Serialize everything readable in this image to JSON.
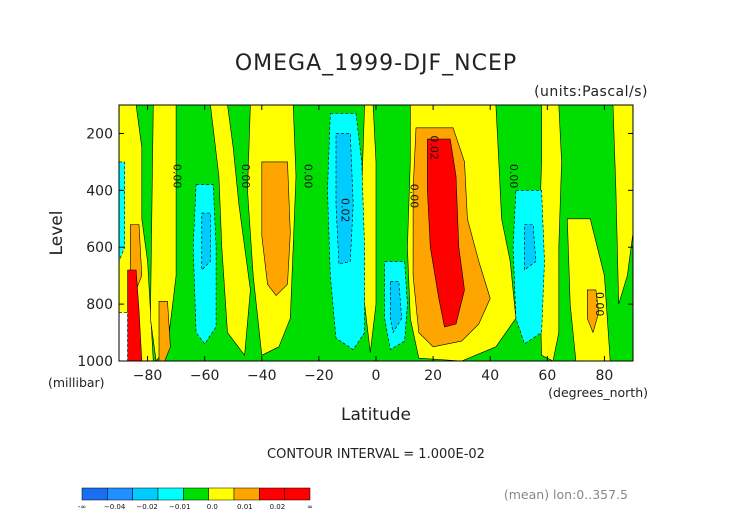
{
  "chart_data": {
    "type": "heatmap",
    "title": "OMEGA_1999-DJF_NCEP",
    "units": "(units:Pascal/s)",
    "xlabel": "Latitude",
    "xunits": "(degrees_north)",
    "ylabel": "Level",
    "yunits": "(millibar)",
    "xlim": [
      -90,
      90
    ],
    "ylim": [
      1000,
      100
    ],
    "xticks": [
      -80,
      -60,
      -40,
      -20,
      0,
      20,
      40,
      60,
      80
    ],
    "yticks": [
      200,
      400,
      600,
      800,
      1000
    ],
    "contour_interval_text": "CONTOUR INTERVAL = 1.000E-02",
    "mean_text": "(mean) lon:0..357.5",
    "colorbar": {
      "labels": [
        "-∞",
        "−0.04",
        "−0.02",
        "−0.01",
        "0.0",
        "0.01",
        "0.02",
        "∞"
      ],
      "colors": [
        "#1a6ef0",
        "#1e90ff",
        "#00ccff",
        "#00ffff",
        "#00dd00",
        "#ffff00",
        "#ffa500",
        "#ff0000",
        "#ff0000"
      ]
    },
    "contour_labels": [
      {
        "text": "0.00",
        "x": -71,
        "y": 350
      },
      {
        "text": "0.00",
        "x": -47,
        "y": 350
      },
      {
        "text": "0.00",
        "x": -25,
        "y": 350
      },
      {
        "text": "0.02",
        "x": -12,
        "y": 470
      },
      {
        "text": "0.00",
        "x": 12,
        "y": 420
      },
      {
        "text": "0.02",
        "x": 19,
        "y": 250
      },
      {
        "text": "0.00",
        "x": 47,
        "y": 350
      },
      {
        "text": "0.00",
        "x": 77,
        "y": 800
      }
    ],
    "regions": [
      {
        "level": 0.005,
        "color": "#ffff00",
        "polygon": [
          [
            -90,
            100
          ],
          [
            -84,
            100
          ],
          [
            -82,
            250
          ],
          [
            -82,
            500
          ],
          [
            -80,
            650
          ],
          [
            -78,
            1000
          ],
          [
            -90,
            1000
          ]
        ]
      },
      {
        "level": 0.005,
        "color": "#ffff00",
        "polygon": [
          [
            -78,
            100
          ],
          [
            -70,
            100
          ],
          [
            -70,
            700
          ],
          [
            -73,
            950
          ],
          [
            -77,
            1000
          ],
          [
            -79,
            850
          ]
        ]
      },
      {
        "level": 0.005,
        "color": "#ffff00",
        "polygon": [
          [
            -58,
            100
          ],
          [
            -52,
            100
          ],
          [
            -50,
            250
          ],
          [
            -48,
            450
          ],
          [
            -44,
            750
          ],
          [
            -46,
            980
          ],
          [
            -52,
            900
          ],
          [
            -54,
            600
          ],
          [
            -55,
            350
          ]
        ]
      },
      {
        "level": 0.005,
        "color": "#ffff00",
        "polygon": [
          [
            -44,
            100
          ],
          [
            -29,
            100
          ],
          [
            -28,
            350
          ],
          [
            -29,
            600
          ],
          [
            -30,
            850
          ],
          [
            -34,
            950
          ],
          [
            -40,
            980
          ],
          [
            -43,
            700
          ],
          [
            -45,
            400
          ]
        ]
      },
      {
        "level": 0.005,
        "color": "#ffff00",
        "polygon": [
          [
            -4,
            100
          ],
          [
            -1,
            100
          ],
          [
            0,
            300
          ],
          [
            0,
            800
          ],
          [
            -2,
            970
          ],
          [
            -4,
            800
          ],
          [
            -5,
            400
          ]
        ]
      },
      {
        "level": 0.005,
        "color": "#ffff00",
        "polygon": [
          [
            12,
            100
          ],
          [
            42,
            100
          ],
          [
            43,
            300
          ],
          [
            44,
            500
          ],
          [
            47,
            650
          ],
          [
            49,
            850
          ],
          [
            42,
            950
          ],
          [
            30,
            1000
          ],
          [
            15,
            990
          ],
          [
            12,
            850
          ],
          [
            11,
            600
          ],
          [
            12,
            300
          ]
        ]
      },
      {
        "level": 0.005,
        "color": "#ffff00",
        "polygon": [
          [
            58,
            100
          ],
          [
            64,
            100
          ],
          [
            65,
            300
          ],
          [
            64,
            600
          ],
          [
            64,
            900
          ],
          [
            62,
            1000
          ],
          [
            58,
            980
          ],
          [
            57,
            600
          ],
          [
            58,
            300
          ]
        ]
      },
      {
        "level": 0.005,
        "color": "#ffff00",
        "polygon": [
          [
            67,
            500
          ],
          [
            75,
            500
          ],
          [
            80,
            700
          ],
          [
            82,
            1000
          ],
          [
            70,
            1000
          ],
          [
            68,
            800
          ]
        ]
      },
      {
        "level": 0.005,
        "color": "#ffff00",
        "polygon": [
          [
            83,
            100
          ],
          [
            90,
            100
          ],
          [
            90,
            550
          ],
          [
            88,
            700
          ],
          [
            85,
            800
          ],
          [
            84,
            400
          ]
        ]
      },
      {
        "level": 0.015,
        "color": "#ffa500",
        "polygon": [
          [
            -86,
            520
          ],
          [
            -83,
            520
          ],
          [
            -82,
            700
          ],
          [
            -84,
            750
          ],
          [
            -86,
            700
          ]
        ]
      },
      {
        "level": 0.015,
        "color": "#ffa500",
        "polygon": [
          [
            -76,
            790
          ],
          [
            -73,
            790
          ],
          [
            -72,
            950
          ],
          [
            -74,
            1000
          ],
          [
            -76,
            1000
          ]
        ]
      },
      {
        "level": 0.015,
        "color": "#ffa500",
        "polygon": [
          [
            -40,
            300
          ],
          [
            -31,
            300
          ],
          [
            -30,
            550
          ],
          [
            -31,
            730
          ],
          [
            -35,
            770
          ],
          [
            -38,
            730
          ],
          [
            -40,
            560
          ]
        ]
      },
      {
        "level": 0.015,
        "color": "#ffa500",
        "polygon": [
          [
            14,
            180
          ],
          [
            27,
            180
          ],
          [
            31,
            300
          ],
          [
            32,
            500
          ],
          [
            36,
            650
          ],
          [
            40,
            780
          ],
          [
            36,
            870
          ],
          [
            30,
            930
          ],
          [
            20,
            950
          ],
          [
            15,
            900
          ],
          [
            13,
            700
          ],
          [
            13,
            400
          ]
        ]
      },
      {
        "level": 0.015,
        "color": "#ffa500",
        "polygon": [
          [
            74,
            750
          ],
          [
            77,
            750
          ],
          [
            78,
            830
          ],
          [
            76,
            900
          ],
          [
            74,
            850
          ]
        ]
      },
      {
        "level": 0.025,
        "color": "#ff0000",
        "polygon": [
          [
            -87,
            680
          ],
          [
            -84,
            680
          ],
          [
            -83,
            820
          ],
          [
            -82,
            1000
          ],
          [
            -87,
            1000
          ]
        ]
      },
      {
        "level": 0.025,
        "color": "#ff0000",
        "polygon": [
          [
            18,
            220
          ],
          [
            26,
            220
          ],
          [
            28,
            350
          ],
          [
            29,
            600
          ],
          [
            31,
            750
          ],
          [
            28,
            870
          ],
          [
            24,
            880
          ],
          [
            22,
            780
          ],
          [
            19,
            600
          ],
          [
            18,
            400
          ]
        ]
      },
      {
        "level": -0.005,
        "color": "#00ffff",
        "polygon": [
          [
            -90,
            300
          ],
          [
            -88,
            300
          ],
          [
            -88,
            600
          ],
          [
            -90,
            650
          ]
        ]
      },
      {
        "level": -0.005,
        "color": "#00ffff",
        "polygon": [
          [
            -63,
            380
          ],
          [
            -57,
            380
          ],
          [
            -56,
            600
          ],
          [
            -56,
            880
          ],
          [
            -60,
            940
          ],
          [
            -63,
            900
          ],
          [
            -64,
            600
          ]
        ]
      },
      {
        "level": -0.005,
        "color": "#00ffff",
        "polygon": [
          [
            -16,
            130
          ],
          [
            -7,
            130
          ],
          [
            -5,
            300
          ],
          [
            -4,
            600
          ],
          [
            -4,
            900
          ],
          [
            -8,
            960
          ],
          [
            -14,
            920
          ],
          [
            -16,
            700
          ],
          [
            -17,
            400
          ]
        ]
      },
      {
        "level": -0.005,
        "color": "#00ffff",
        "polygon": [
          [
            3,
            650
          ],
          [
            10,
            650
          ],
          [
            11,
            800
          ],
          [
            10,
            930
          ],
          [
            5,
            960
          ],
          [
            3,
            850
          ]
        ]
      },
      {
        "level": -0.005,
        "color": "#00ffff",
        "polygon": [
          [
            49,
            400
          ],
          [
            58,
            400
          ],
          [
            59,
            650
          ],
          [
            58,
            900
          ],
          [
            52,
            940
          ],
          [
            49,
            850
          ],
          [
            48,
            600
          ]
        ]
      },
      {
        "level": -0.015,
        "color": "#00ccff",
        "polygon": [
          [
            -61,
            480
          ],
          [
            -58,
            480
          ],
          [
            -58,
            650
          ],
          [
            -61,
            680
          ]
        ]
      },
      {
        "level": -0.015,
        "color": "#00ccff",
        "polygon": [
          [
            -14,
            200
          ],
          [
            -9,
            200
          ],
          [
            -8,
            450
          ],
          [
            -9,
            650
          ],
          [
            -13,
            660
          ],
          [
            -14,
            450
          ]
        ]
      },
      {
        "level": -0.015,
        "color": "#00ccff",
        "polygon": [
          [
            5,
            720
          ],
          [
            8,
            720
          ],
          [
            9,
            850
          ],
          [
            6,
            900
          ],
          [
            5,
            850
          ]
        ]
      },
      {
        "level": -0.015,
        "color": "#00ccff",
        "polygon": [
          [
            52,
            520
          ],
          [
            55,
            520
          ],
          [
            56,
            650
          ],
          [
            52,
            680
          ]
        ]
      },
      {
        "level": -0.025,
        "color": "#ffffff",
        "polygon": [
          [
            -90,
            830
          ],
          [
            -87,
            830
          ],
          [
            -87,
            1000
          ],
          [
            -90,
            1000
          ]
        ]
      }
    ]
  }
}
